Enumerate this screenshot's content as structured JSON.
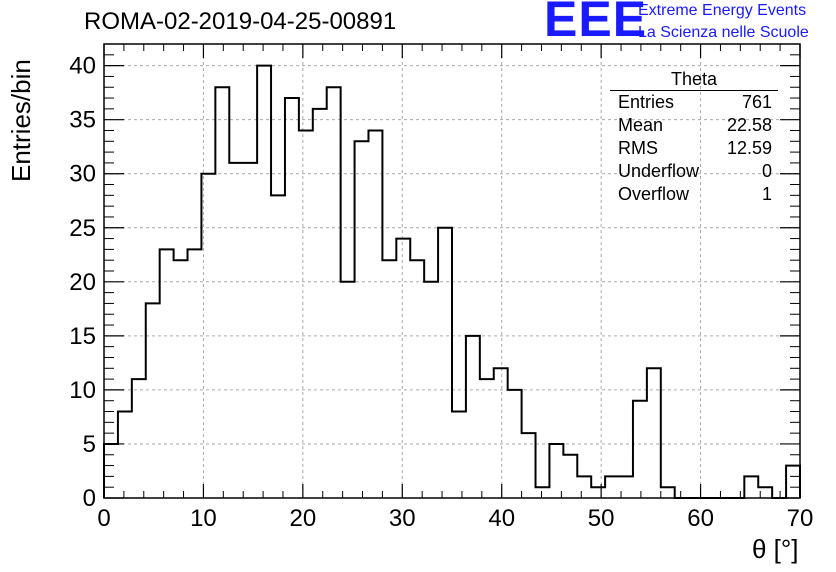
{
  "chart_data": {
    "type": "bar",
    "title": "ROMA-02-2019-04-25-00891",
    "xlabel": "θ [°]",
    "ylabel": "Entries/bin",
    "xlim": [
      0,
      70
    ],
    "ylim": [
      0,
      42
    ],
    "bin_width": 1.4,
    "grid": true,
    "bin_edges_start": 0,
    "values": [
      5,
      8,
      11,
      18,
      23,
      22,
      23,
      30,
      38,
      31,
      31,
      40,
      28,
      37,
      34,
      36,
      38,
      20,
      33,
      34,
      22,
      24,
      22,
      20,
      25,
      8,
      15,
      11,
      12,
      10,
      6,
      1,
      5,
      4,
      2,
      1,
      2,
      2,
      9,
      12,
      1,
      0,
      0,
      0,
      0,
      0,
      2,
      1,
      0,
      3
    ],
    "x_ticks": [
      "0",
      "10",
      "20",
      "30",
      "40",
      "50",
      "60",
      "70"
    ],
    "y_ticks": [
      "0",
      "5",
      "10",
      "15",
      "20",
      "25",
      "30",
      "35",
      "40"
    ]
  },
  "stats": {
    "title": "Theta",
    "rows": [
      {
        "label": "Entries",
        "value": "761"
      },
      {
        "label": "Mean",
        "value": "22.58"
      },
      {
        "label": "RMS",
        "value": "12.59"
      },
      {
        "label": "Underflow",
        "value": "0"
      },
      {
        "label": "Overflow",
        "value": "1"
      }
    ]
  },
  "logo": {
    "text": "EEE",
    "line1": "Extreme Energy Events",
    "line2": "La Scienza nelle Scuole",
    "color": "#1a1aff"
  }
}
